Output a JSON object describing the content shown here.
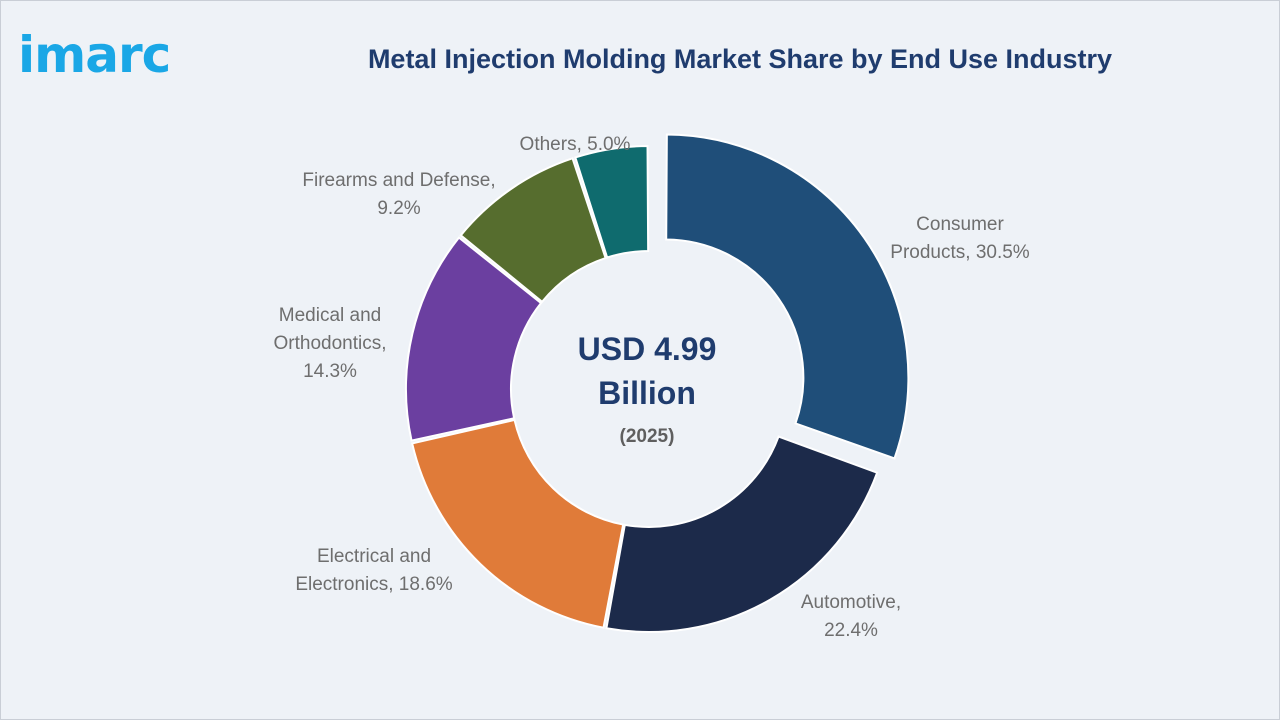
{
  "brand": {
    "logo_text": "imarc",
    "logo_color": "#1aa7e6"
  },
  "chart_data": {
    "type": "pie",
    "variant": "donut",
    "title": "Metal Injection Molding Market Share by End Use Industry",
    "center_value_line1": "USD 4.99",
    "center_value_line2": "Billion",
    "center_year": "(2025)",
    "exploded_slice": "Consumer Products",
    "slices": [
      {
        "name": "Consumer Products",
        "value": 30.5,
        "color": "#1f4e79",
        "label_lines": [
          "Consumer",
          "Products, 30.5%"
        ]
      },
      {
        "name": "Automotive",
        "value": 22.4,
        "color": "#1c2a4a",
        "label_lines": [
          "Automotive,",
          "22.4%"
        ]
      },
      {
        "name": "Electrical and Electronics",
        "value": 18.6,
        "color": "#e07b39",
        "label_lines": [
          "Electrical and",
          "Electronics, 18.6%"
        ]
      },
      {
        "name": "Medical and Orthodontics",
        "value": 14.3,
        "color": "#6b3fa0",
        "label_lines": [
          "Medical and",
          "Orthodontics,",
          "14.3%"
        ]
      },
      {
        "name": "Firearms and Defense",
        "value": 9.2,
        "color": "#566d2e",
        "label_lines": [
          "Firearms and Defense,",
          "9.2%"
        ]
      },
      {
        "name": "Others",
        "value": 5.0,
        "color": "#0f6b6e",
        "label_lines": [
          "Others, 5.0%"
        ]
      }
    ]
  }
}
